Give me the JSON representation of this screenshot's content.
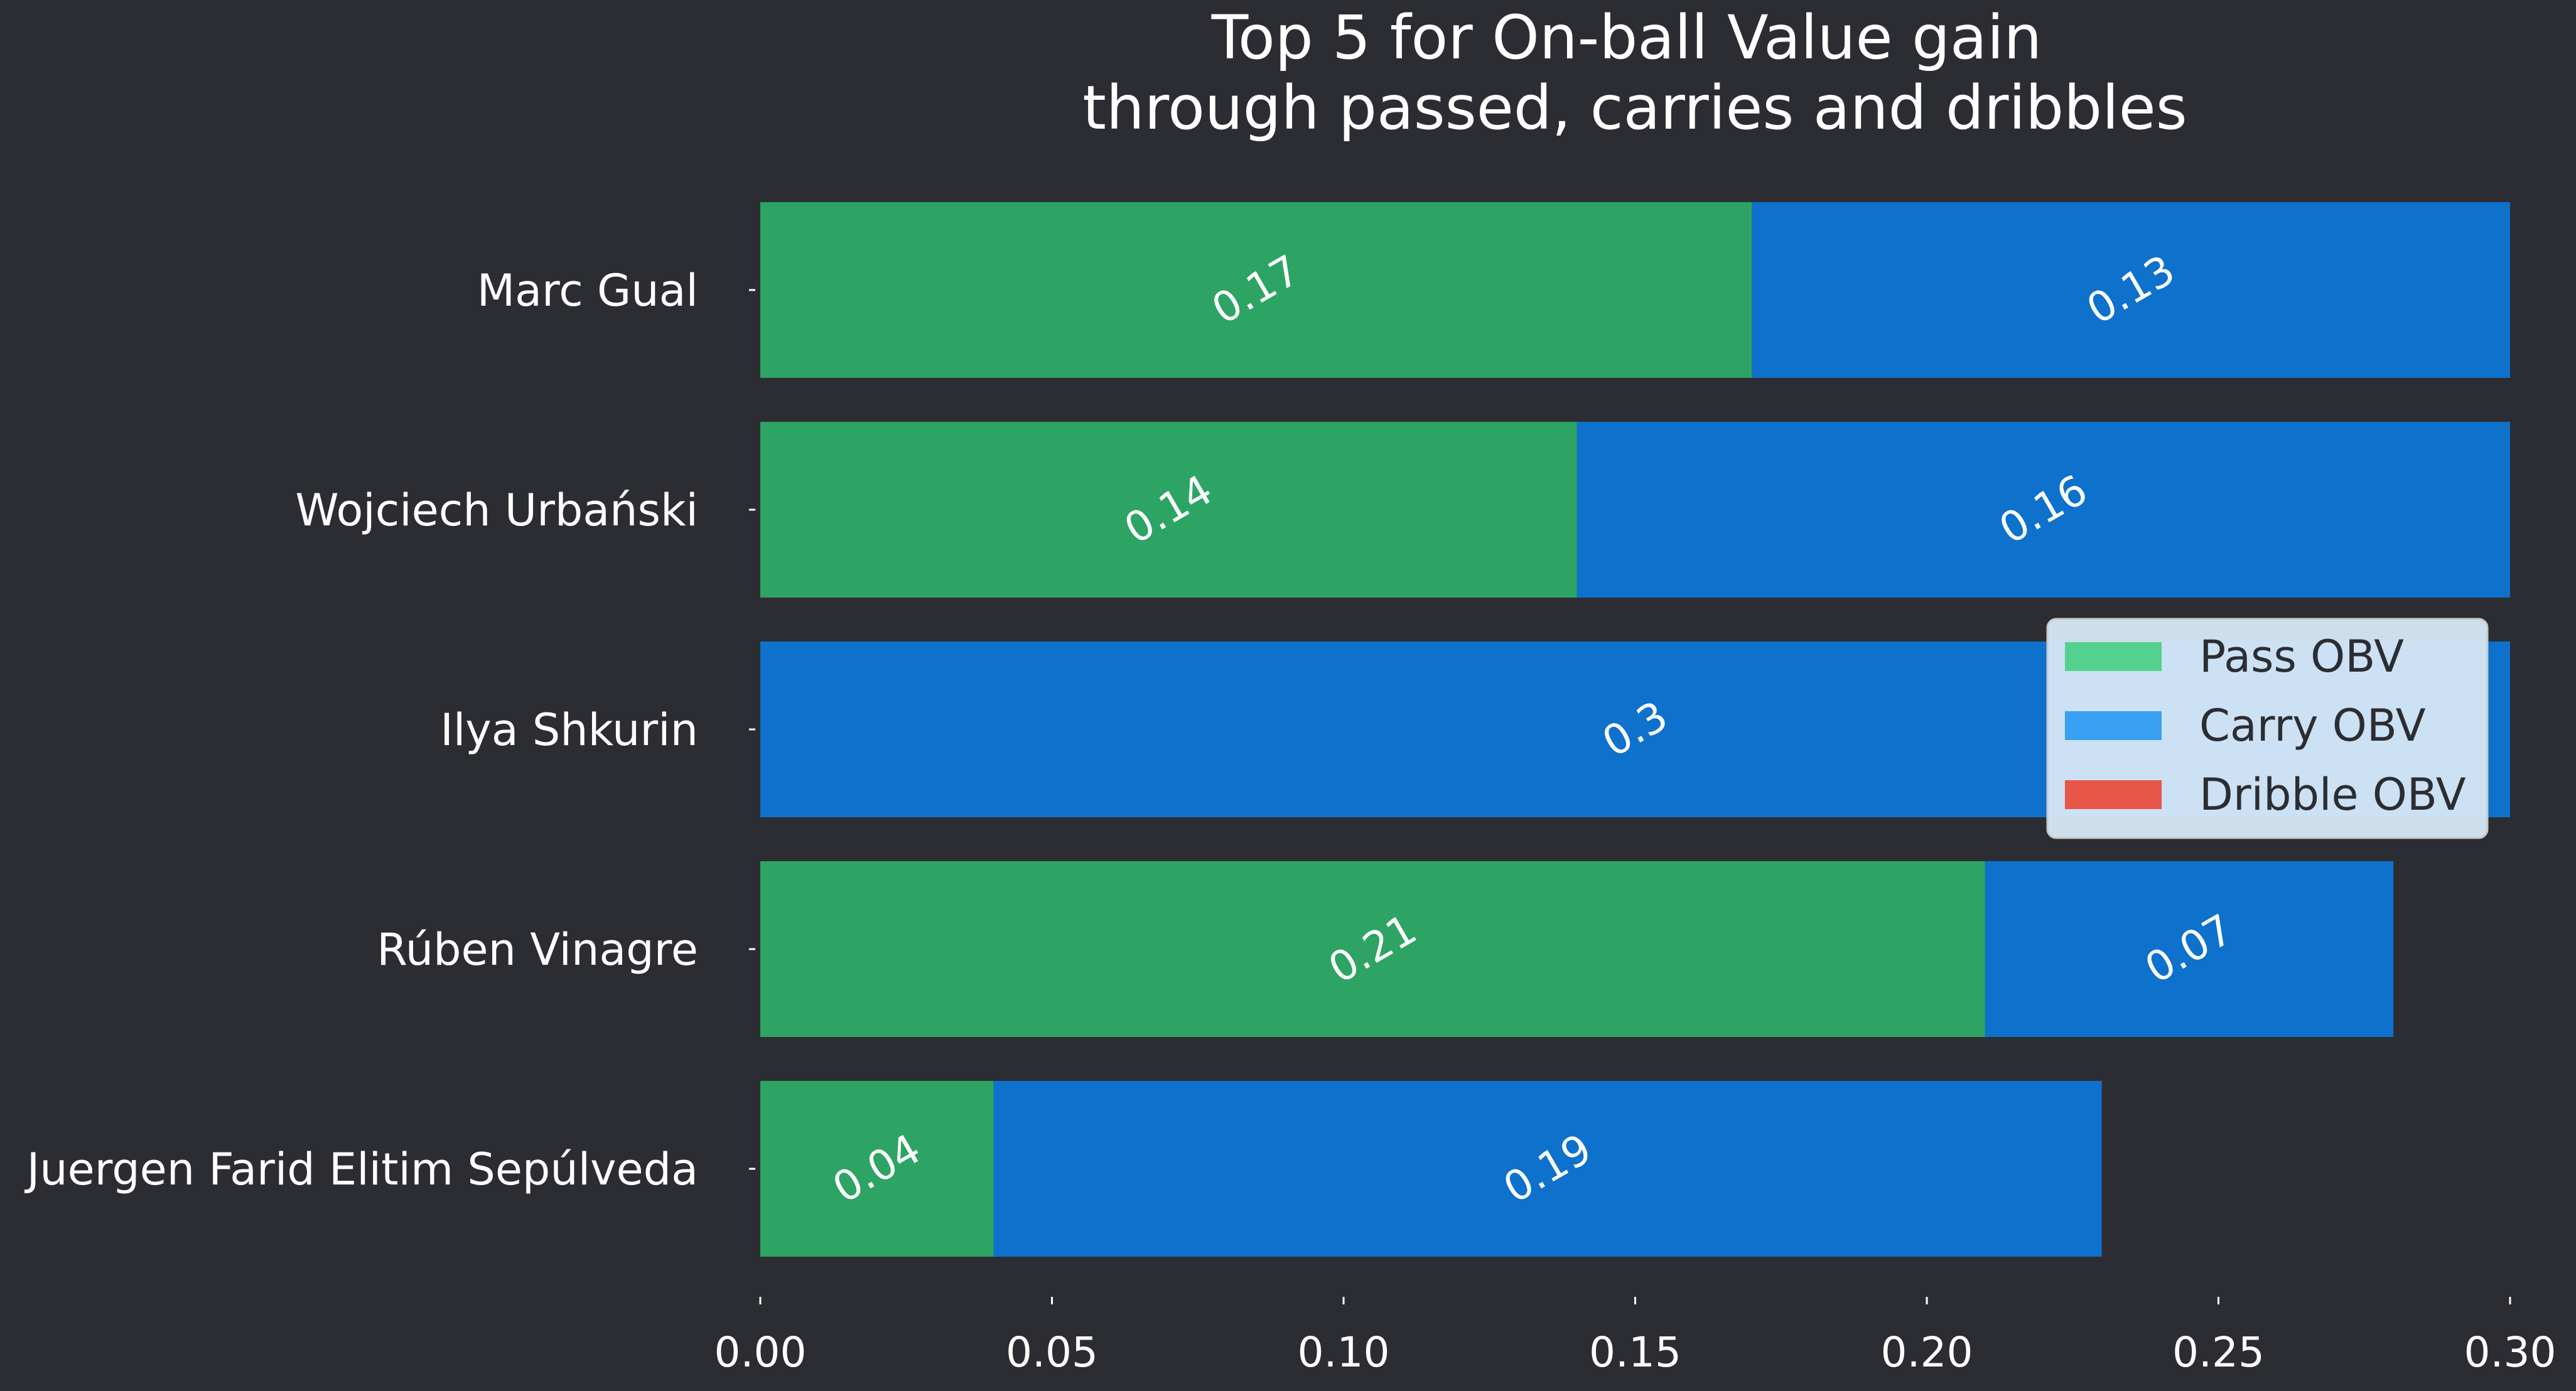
{
  "chart_data": {
    "type": "bar",
    "orientation": "horizontal",
    "stacked": true,
    "title": "Top 5 for On-ball Value gain\nthrough passed, carries and dribbles",
    "categories": [
      "Marc Gual",
      "Wojciech Urbański",
      "Ilya Shkurin",
      "Rúben Vinagre",
      "Juergen Farid Elitim Sepúlveda"
    ],
    "series": [
      {
        "name": "Pass OBV",
        "color": "#2da464",
        "legend_color": "#55d18f",
        "values": [
          0.17,
          0.14,
          0,
          0.21,
          0.04
        ]
      },
      {
        "name": "Carry OBV",
        "color": "#0e71cc",
        "legend_color": "#39a0f3",
        "values": [
          0.13,
          0.16,
          0.3,
          0.07,
          0.19
        ]
      },
      {
        "name": "Dribble OBV",
        "color": "#e8564a",
        "legend_color": "#e8564a",
        "values": [
          0,
          0,
          0,
          0,
          0
        ]
      }
    ],
    "data_labels": [
      [
        "0.17",
        "0.13",
        null
      ],
      [
        "0.14",
        "0.16",
        null
      ],
      [
        null,
        "0.3",
        null
      ],
      [
        "0.21",
        "0.07",
        null
      ],
      [
        "0.04",
        "0.19",
        null
      ]
    ],
    "x_ticks": [
      "0.00",
      "0.05",
      "0.10",
      "0.15",
      "0.20",
      "0.25",
      "0.30"
    ],
    "xlim": [
      0,
      0.3
    ],
    "xlabel": "",
    "ylabel": "",
    "grid": false,
    "legend_position": "right",
    "background": "#2c2d32",
    "text_color": "#ffffff"
  }
}
